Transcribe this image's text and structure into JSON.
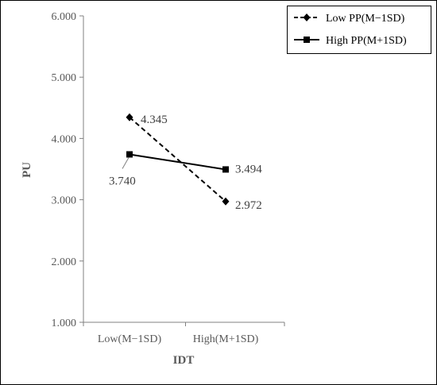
{
  "chart_data": {
    "type": "line",
    "categories": [
      "Low(M−1SD)",
      "High(M+1SD)"
    ],
    "series": [
      {
        "name": "Low PP(M−1SD)",
        "values": [
          4.345,
          2.972
        ],
        "labels": [
          "4.345",
          "2.972"
        ],
        "marker": "diamond",
        "line_style": "dashed",
        "color": "#000000"
      },
      {
        "name": "High PP(M+1SD)",
        "values": [
          3.74,
          3.494
        ],
        "labels": [
          "3.740",
          "3.494"
        ],
        "marker": "square",
        "line_style": "solid",
        "color": "#000000"
      }
    ],
    "xlabel": "IDT",
    "ylabel": "PU",
    "ylim": [
      1.0,
      6.0
    ],
    "yticks": [
      1.0,
      2.0,
      3.0,
      4.0,
      5.0,
      6.0
    ],
    "ytick_labels": [
      "1.000",
      "2.000",
      "3.000",
      "4.000",
      "5.000",
      "6.000"
    ],
    "grid": false,
    "legend_position": "top-right"
  }
}
